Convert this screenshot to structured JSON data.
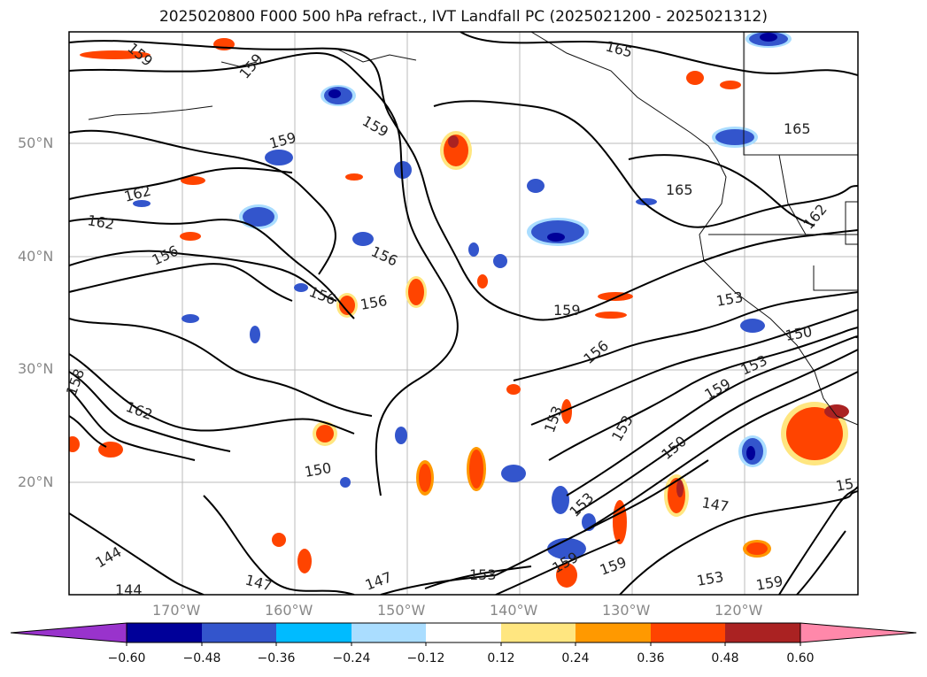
{
  "title": "2025020800 F000 500 hPa refract., IVT Landfall PC (2025021200 - 2025021312)",
  "map": {
    "lat_labels": [
      "50°N",
      "40°N",
      "30°N",
      "20°N"
    ],
    "lon_labels": [
      "170°W",
      "160°W",
      "150°W",
      "140°W",
      "130°W",
      "120°W"
    ],
    "contour_labels": [
      "159",
      "159",
      "159",
      "165",
      "165",
      "165",
      "162",
      "162",
      "162",
      "156",
      "156",
      "156",
      "156",
      "159",
      "153",
      "150",
      "153",
      "159",
      "156",
      "153",
      "150",
      "153",
      "147",
      "150",
      "162",
      "158",
      "144",
      "144",
      "147",
      "147",
      "153",
      "153",
      "159",
      "159",
      "153",
      "159",
      "15",
      "159"
    ]
  },
  "colorbar": {
    "ticks": [
      "−0.60",
      "−0.48",
      "−0.36",
      "−0.24",
      "−0.12",
      "0.12",
      "0.24",
      "0.36",
      "0.48",
      "0.60"
    ],
    "colors": {
      "under": "#9933cc",
      "bins": [
        "#9933cc",
        "#000099",
        "#3355cc",
        "#00bbff",
        "#aaddff",
        "#ffffff",
        "#ffe680",
        "#ff9900",
        "#ff4400",
        "#aa2222"
      ],
      "over": "#ff88aa"
    }
  },
  "chart_data": {
    "type": "heatmap",
    "title": "2025020800 F000 500 hPa refract., IVT Landfall PC (2025021200 - 2025021312)",
    "x_ticks": [
      "170°W",
      "160°W",
      "150°W",
      "140°W",
      "130°W",
      "120°W"
    ],
    "y_ticks": [
      "50°N",
      "40°N",
      "30°N",
      "20°N"
    ],
    "colorbar_ticks": [
      -0.6,
      -0.48,
      -0.36,
      -0.24,
      -0.12,
      0.12,
      0.24,
      0.36,
      0.48,
      0.6
    ],
    "contour_levels_labeled": [
      144,
      147,
      150,
      153,
      156,
      159,
      162,
      165
    ]
  }
}
